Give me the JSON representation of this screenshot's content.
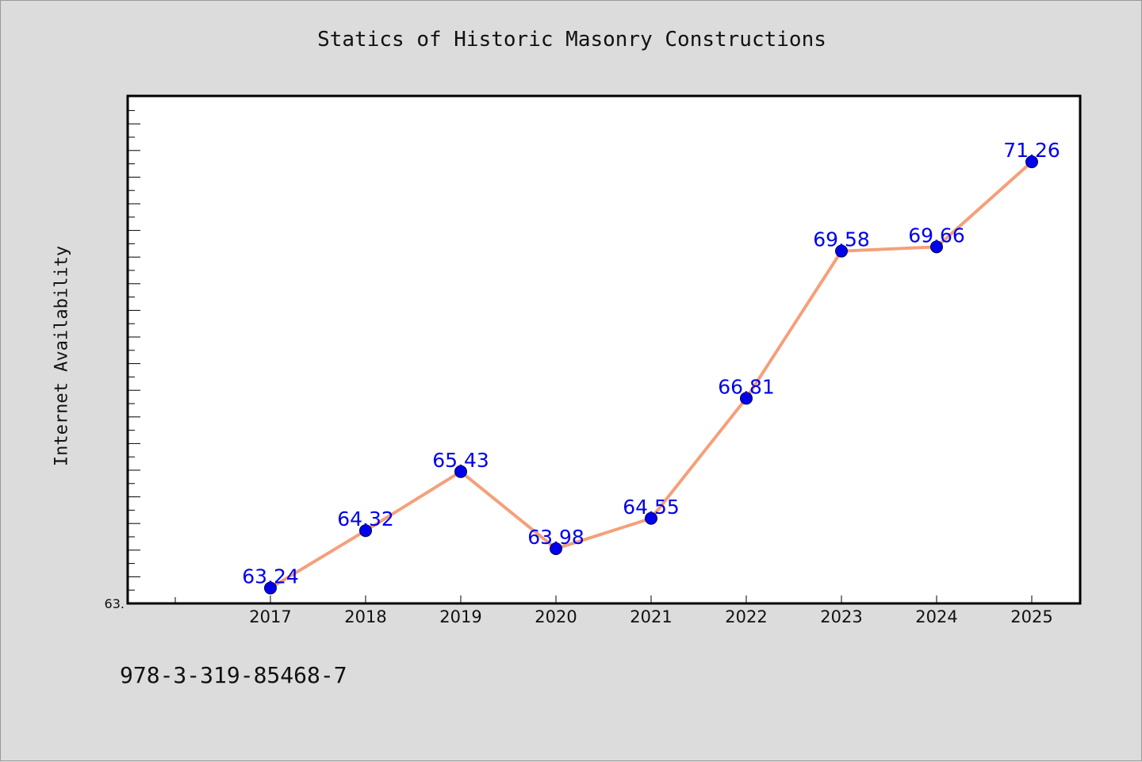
{
  "chart_data": {
    "type": "line",
    "title": "Statics of Historic Masonry Constructions",
    "xlabel": "",
    "ylabel": "Internet Availability",
    "categories": [
      "2017",
      "2018",
      "2019",
      "2020",
      "2021",
      "2022",
      "2023",
      "2024",
      "2025"
    ],
    "series": [
      {
        "values": [
          63.24,
          64.32,
          65.43,
          63.98,
          64.55,
          66.81,
          69.58,
          69.66,
          71.26
        ],
        "line_color": "#f4a07a",
        "marker_color": "#0000ee"
      }
    ],
    "data_labels": [
      "63.24",
      "64.32",
      "65.43",
      "63.98",
      "64.55",
      "66.81",
      "69.58",
      "69.66",
      "71.26"
    ],
    "data_label_color": "#0000ee",
    "ylim": [
      62.95,
      72.5
    ],
    "y_tick_label": "63.",
    "grid": false,
    "legend": "none"
  },
  "footnote": "978-3-319-85468-7"
}
